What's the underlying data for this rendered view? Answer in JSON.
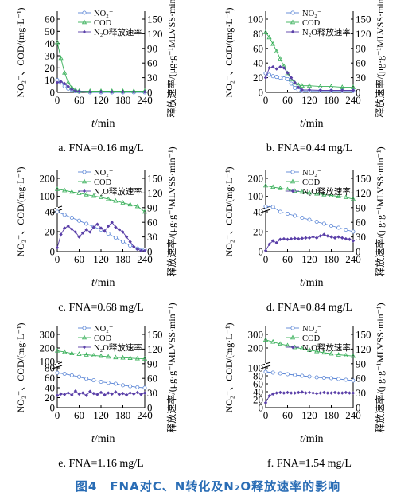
{
  "figure_caption": "图4　FNA对C、N转化及N₂O释放速率的影响",
  "colors": {
    "no2": "#5b86d6",
    "cod": "#39b05a",
    "n2o": "#5a3fa8",
    "axis": "#000000"
  },
  "chart_data": [
    {
      "type": "line",
      "panel_caption": "a. FNA=0.16 mg/L",
      "x_label_italic": "t",
      "x_label_unit": "/min",
      "x_ticks": [
        0,
        60,
        120,
        180,
        240
      ],
      "left_ylabel": "NO₂⁻、COD/(mg·L⁻¹)",
      "right_ylabel": "释放速率/(μg·g⁻¹MLVSS·min⁻¹)",
      "left_ylim": [
        0,
        60
      ],
      "left_ticks": [
        0,
        10,
        20,
        30,
        40,
        50,
        60
      ],
      "right_ylim": [
        0,
        150
      ],
      "right_ticks": [
        0,
        30,
        60,
        90,
        120,
        150
      ],
      "legend": [
        "NO₂⁻",
        "COD",
        "N₂O释放速率"
      ],
      "series": [
        {
          "name": "NO₂⁻",
          "axis": "left",
          "x": [
            0,
            10,
            20,
            30,
            40,
            50,
            60,
            90,
            120,
            150,
            180,
            210,
            240
          ],
          "y": [
            10,
            8,
            5,
            3,
            2,
            1,
            0.5,
            0,
            0,
            0,
            0,
            0,
            0
          ]
        },
        {
          "name": "COD",
          "axis": "left",
          "x": [
            0,
            10,
            20,
            30,
            40,
            50,
            60,
            90,
            120,
            150,
            180,
            210,
            240
          ],
          "y": [
            41,
            28,
            16,
            8,
            4,
            2,
            1,
            1,
            1,
            1,
            1,
            1,
            1
          ]
        },
        {
          "name": "N₂O释放速率",
          "axis": "right",
          "x": [
            0,
            10,
            20,
            30,
            40,
            50,
            60,
            90,
            120,
            150,
            180,
            210,
            240
          ],
          "y": [
            20,
            22,
            18,
            12,
            6,
            3,
            2,
            1,
            1,
            1,
            1,
            1,
            1
          ]
        }
      ]
    },
    {
      "type": "line",
      "panel_caption": "b. FNA=0.44 mg/L",
      "x_label_italic": "t",
      "x_label_unit": "/min",
      "x_ticks": [
        0,
        60,
        120,
        180,
        240
      ],
      "left_ylabel": "NO₂⁻、COD/(mg·L⁻¹)",
      "right_ylabel": "释放速率/(μg·g⁻¹MLVSS·min⁻¹)",
      "left_ylim": [
        0,
        100
      ],
      "left_ticks": [
        0,
        20,
        40,
        60,
        80,
        100
      ],
      "right_ylim": [
        0,
        150
      ],
      "right_ticks": [
        0,
        30,
        60,
        90,
        120,
        150
      ],
      "legend": [
        "NO₂⁻",
        "COD",
        "N₂O释放速率"
      ],
      "series": [
        {
          "name": "NO₂⁻",
          "axis": "left",
          "x": [
            0,
            10,
            20,
            30,
            40,
            50,
            60,
            70,
            80,
            90,
            100,
            120,
            150,
            180,
            210,
            240
          ],
          "y": [
            26,
            24,
            22,
            21,
            20,
            19,
            18,
            12,
            6,
            3,
            2,
            2,
            2,
            2,
            2,
            2
          ]
        },
        {
          "name": "COD",
          "axis": "left",
          "x": [
            0,
            10,
            20,
            30,
            40,
            50,
            60,
            70,
            80,
            90,
            100,
            120,
            150,
            180,
            210,
            240
          ],
          "y": [
            82,
            75,
            66,
            56,
            46,
            36,
            26,
            18,
            13,
            10,
            9,
            9,
            8,
            8,
            7,
            7
          ]
        },
        {
          "name": "N₂O释放速率",
          "axis": "right",
          "x": [
            0,
            10,
            20,
            30,
            40,
            50,
            60,
            70,
            80,
            90,
            100,
            120,
            150,
            180,
            210,
            240
          ],
          "y": [
            30,
            50,
            52,
            48,
            52,
            50,
            40,
            30,
            20,
            10,
            5,
            5,
            4,
            4,
            4,
            4
          ]
        }
      ]
    },
    {
      "type": "line",
      "broken_axis": true,
      "panel_caption": "c. FNA=0.68 mg/L",
      "x_label_italic": "t",
      "x_label_unit": "/min",
      "x_ticks": [
        0,
        60,
        120,
        180,
        240
      ],
      "left_ylabel": "NO₂⁻、COD/(mg·L⁻¹)",
      "right_ylabel": "释放速率/(μg·g⁻¹MLVSS·min⁻¹)",
      "left_ylim_lower": [
        0,
        40
      ],
      "left_ticks_lower": [
        0,
        20,
        40
      ],
      "left_ylim_upper": [
        50,
        200
      ],
      "left_ticks_upper": [
        100,
        200
      ],
      "right_ylim": [
        0,
        150
      ],
      "right_ticks": [
        0,
        30,
        60,
        90,
        120,
        150
      ],
      "legend": [
        "NO₂⁻",
        "COD",
        "N₂O释放速率"
      ],
      "series": [
        {
          "name": "NO₂⁻",
          "axis": "left",
          "x": [
            0,
            20,
            40,
            60,
            80,
            100,
            120,
            140,
            160,
            180,
            200,
            220,
            240
          ],
          "y": [
            40,
            37,
            34,
            31,
            28,
            25,
            22,
            18,
            14,
            10,
            6,
            3,
            2
          ]
        },
        {
          "name": "COD",
          "axis": "left",
          "x": [
            0,
            20,
            40,
            60,
            80,
            100,
            120,
            140,
            160,
            180,
            200,
            220,
            240
          ],
          "y": [
            140,
            133,
            125,
            118,
            110,
            102,
            95,
            85,
            75,
            65,
            55,
            45,
            40
          ]
        },
        {
          "name": "N₂O释放速率",
          "axis": "right",
          "x": [
            0,
            10,
            20,
            30,
            40,
            50,
            60,
            70,
            80,
            90,
            100,
            110,
            120,
            130,
            140,
            150,
            160,
            170,
            180,
            190,
            200,
            210,
            220,
            230,
            240
          ],
          "y": [
            8,
            35,
            48,
            52,
            46,
            40,
            30,
            38,
            45,
            40,
            50,
            56,
            48,
            42,
            52,
            60,
            50,
            45,
            40,
            30,
            20,
            10,
            5,
            2,
            2
          ]
        }
      ]
    },
    {
      "type": "line",
      "broken_axis": true,
      "panel_caption": "d. FNA=0.84 mg/L",
      "x_label_italic": "t",
      "x_label_unit": "/min",
      "x_ticks": [
        0,
        60,
        120,
        180,
        240
      ],
      "left_ylabel": "NO₂⁻、COD/(mg·L⁻¹)",
      "right_ylabel": "释放速率/(μg·g⁻¹MLVSS·min⁻¹)",
      "left_ylim_lower": [
        0,
        40
      ],
      "left_ticks_lower": [
        0,
        20,
        40
      ],
      "left_ylim_upper": [
        50,
        200
      ],
      "left_ticks_upper": [
        100,
        200
      ],
      "right_ylim": [
        0,
        150
      ],
      "right_ticks": [
        0,
        30,
        60,
        90,
        120,
        150
      ],
      "legend": [
        "NO₂⁻",
        "COD",
        "N₂O释放速率"
      ],
      "series": [
        {
          "name": "NO₂⁻",
          "axis": "left",
          "x": [
            0,
            20,
            40,
            60,
            80,
            100,
            120,
            140,
            160,
            180,
            200,
            220,
            240
          ],
          "y": [
            44,
            42,
            40,
            38,
            36,
            34,
            32,
            30,
            28,
            26,
            24,
            22,
            20
          ]
        },
        {
          "name": "COD",
          "axis": "left",
          "x": [
            0,
            20,
            40,
            60,
            80,
            100,
            120,
            140,
            160,
            180,
            200,
            220,
            240
          ],
          "y": [
            160,
            152,
            145,
            138,
            130,
            125,
            120,
            115,
            110,
            105,
            100,
            95,
            85
          ]
        },
        {
          "name": "N₂O释放速率",
          "axis": "right",
          "x": [
            0,
            10,
            20,
            30,
            40,
            50,
            60,
            70,
            80,
            90,
            100,
            110,
            120,
            130,
            140,
            150,
            160,
            170,
            180,
            190,
            200,
            210,
            220,
            230,
            240
          ],
          "y": [
            2,
            15,
            22,
            18,
            25,
            26,
            25,
            26,
            27,
            26,
            27,
            28,
            28,
            30,
            28,
            32,
            35,
            32,
            30,
            28,
            30,
            28,
            26,
            25,
            22
          ]
        }
      ]
    },
    {
      "type": "line",
      "broken_axis": true,
      "panel_caption": "e. FNA=1.16 mg/L",
      "x_label_italic": "t",
      "x_label_unit": "/min",
      "x_ticks": [
        0,
        60,
        120,
        180,
        240
      ],
      "left_ylabel": "NO₂⁻、COD/(mg·L⁻¹)",
      "right_ylabel": "释放速率/(μg·g⁻¹MLVSS·min⁻¹)",
      "left_ylim_lower": [
        0,
        80
      ],
      "left_ticks_lower": [
        0,
        20,
        40,
        60,
        80
      ],
      "left_ylim_upper": [
        100,
        300
      ],
      "left_ticks_upper": [
        100,
        200,
        300
      ],
      "right_ylim": [
        0,
        150
      ],
      "right_ticks": [
        0,
        30,
        60,
        90,
        120,
        150
      ],
      "legend": [
        "NO₂⁻",
        "COD",
        "N₂O释放速率"
      ],
      "series": [
        {
          "name": "NO₂⁻",
          "axis": "left",
          "x": [
            0,
            20,
            40,
            60,
            80,
            100,
            120,
            140,
            160,
            180,
            200,
            220,
            240
          ],
          "y": [
            70,
            68,
            65,
            62,
            58,
            55,
            52,
            50,
            48,
            45,
            43,
            41,
            40
          ]
        },
        {
          "name": "COD",
          "axis": "left",
          "x": [
            0,
            20,
            40,
            60,
            80,
            100,
            120,
            140,
            160,
            180,
            200,
            220,
            240
          ],
          "y": [
            180,
            170,
            160,
            155,
            150,
            145,
            140,
            135,
            130,
            128,
            125,
            122,
            120
          ]
        },
        {
          "name": "N₂O释放速率",
          "axis": "right",
          "x": [
            0,
            10,
            20,
            30,
            40,
            50,
            60,
            70,
            80,
            90,
            100,
            110,
            120,
            130,
            140,
            150,
            160,
            170,
            180,
            190,
            200,
            210,
            220,
            230,
            240
          ],
          "y": [
            25,
            28,
            27,
            30,
            26,
            34,
            28,
            30,
            25,
            33,
            29,
            27,
            31,
            26,
            30,
            28,
            32,
            27,
            29,
            26,
            30,
            28,
            31,
            27,
            30
          ]
        }
      ]
    },
    {
      "type": "line",
      "broken_axis": true,
      "panel_caption": "f. FNA=1.54 mg/L",
      "x_label_italic": "t",
      "x_label_unit": "/min",
      "x_ticks": [
        0,
        60,
        120,
        180,
        240
      ],
      "left_ylabel": "NO₂⁻、COD/(mg·L⁻¹)",
      "right_ylabel": "释放速率/(μg·g⁻¹MLVSS·min⁻¹)",
      "left_ylim_lower": [
        0,
        100
      ],
      "left_ticks_lower": [
        0,
        20,
        40,
        60,
        80,
        100
      ],
      "left_ylim_upper": [
        100,
        300
      ],
      "left_ticks_upper": [
        200,
        300
      ],
      "right_ylim": [
        0,
        150
      ],
      "right_ticks": [
        0,
        30,
        60,
        90,
        120,
        150
      ],
      "legend": [
        "NO₂⁻",
        "COD",
        "N₂O释放速率"
      ],
      "series": [
        {
          "name": "NO₂⁻",
          "axis": "left",
          "x": [
            0,
            20,
            40,
            60,
            80,
            100,
            120,
            140,
            160,
            180,
            200,
            220,
            240
          ],
          "y": [
            90,
            88,
            86,
            84,
            82,
            80,
            78,
            76,
            75,
            74,
            72,
            70,
            68
          ]
        },
        {
          "name": "COD",
          "axis": "left",
          "x": [
            0,
            20,
            40,
            60,
            80,
            100,
            120,
            140,
            160,
            180,
            200,
            220,
            240
          ],
          "y": [
            260,
            245,
            230,
            218,
            205,
            195,
            185,
            175,
            165,
            158,
            150,
            145,
            140
          ]
        },
        {
          "name": "N₂O释放速率",
          "axis": "right",
          "x": [
            0,
            10,
            20,
            30,
            40,
            50,
            60,
            70,
            80,
            90,
            100,
            110,
            120,
            130,
            140,
            150,
            160,
            170,
            180,
            190,
            200,
            210,
            220,
            230,
            240
          ],
          "y": [
            10,
            24,
            28,
            30,
            31,
            30,
            31,
            30,
            30,
            31,
            32,
            30,
            31,
            30,
            29,
            30,
            31,
            30,
            30,
            31,
            30,
            30,
            31,
            30,
            30
          ]
        }
      ]
    }
  ]
}
